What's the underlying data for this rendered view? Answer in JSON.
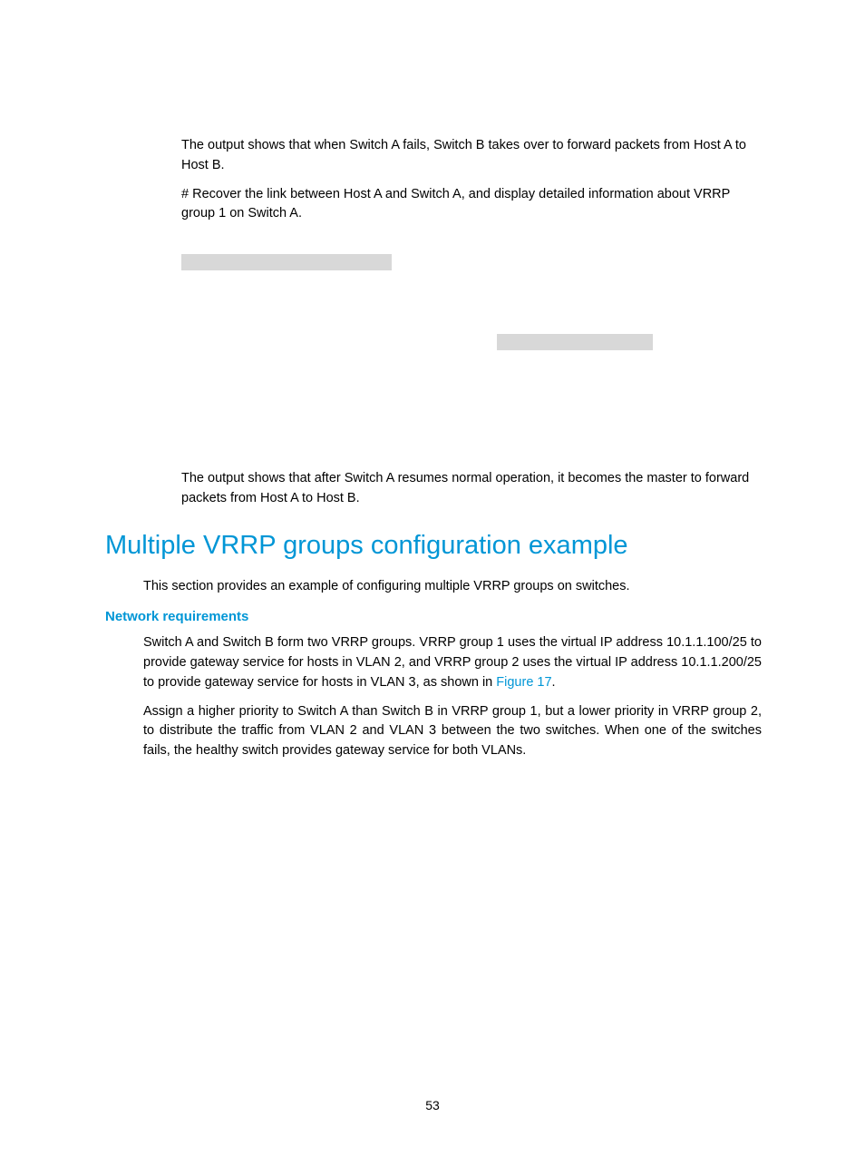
{
  "paragraphs": {
    "p1": "The output shows that when Switch A fails, Switch B takes over to forward packets from Host A to Host B.",
    "p2": "# Recover the link between Host A and Switch A, and display detailed information about VRRP group 1 on Switch A.",
    "p3": "The output shows that after Switch A resumes normal operation, it becomes the master to forward packets from Host A to Host B."
  },
  "heading_main": "Multiple VRRP groups configuration example",
  "intro": "This section provides an example of configuring multiple VRRP groups on switches.",
  "heading_sub": "Network requirements",
  "req_p1_a": "Switch A and Switch B form two VRRP groups. VRRP group 1 uses the virtual IP address 10.1.1.100/25 to provide gateway service for hosts in VLAN 2, and VRRP group 2 uses the virtual IP address 10.1.1.200/25 to provide gateway service for hosts in VLAN 3, as shown in ",
  "req_p1_link": "Figure 17",
  "req_p1_b": ".",
  "req_p2": "Assign a higher priority to Switch A than Switch B in VRRP group 1, but a lower priority in VRRP group 2, to distribute the traffic from VLAN 2 and VLAN 3 between the two switches. When one of the switches fails, the healthy switch provides gateway service for both VLANs.",
  "page_number": "53",
  "colors": {
    "accent": "#0096d6",
    "text": "#000000",
    "gray_block": "#d8d8d8",
    "background": "#ffffff"
  },
  "typography": {
    "body_fontsize": 14.5,
    "h1_fontsize": 29,
    "h2_fontsize": 15,
    "font_family": "Arial"
  }
}
